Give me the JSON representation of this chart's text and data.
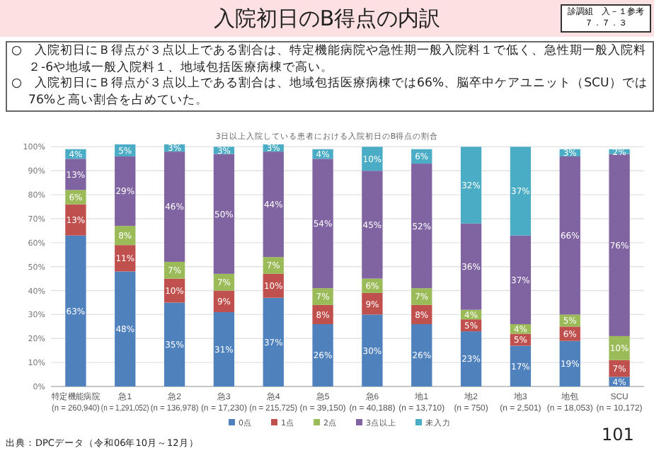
{
  "chart_data": {
    "type": "bar",
    "stacked": true,
    "title": "入院初日のB得点の内訳",
    "subtitle": "3日以上入院している患者における入院初日のB得点の割合",
    "annotations": [
      "○　入院初日にＢ得点が３点以上である割合は、特定機能病院や急性期一般入院料１で低く、急性期一般入院料２-6や地域一般入院料１、地域包括医療病棟で高い。",
      "○　入院初日にＢ得点が３点以上である割合は、地域包括医療病棟では66%、脳卒中ケアユニット（SCU）では76%と高い割合を占めていた。",
      "診調組　入－１参考",
      "７．７．３",
      "出典：DPCデータ（令和06年10月～12月）",
      "101"
    ],
    "categories": [
      "特定機能病院\n(n = 260,940)",
      "急1\n(n = 1,291,052)",
      "急2\n(n = 136,978)",
      "急3\n(n = 17,230)",
      "急4\n(n = 215,725)",
      "急5\n(n = 39,150)",
      "急6\n(n = 40,188)",
      "地1\n(n = 13,710)",
      "地2\n(n = 750)",
      "地3\n(n = 2,501)",
      "地包\n(n = 18,053)",
      "SCU\n(n = 10,172)"
    ],
    "series": [
      {
        "name": "0点",
        "color": "#4f81bd",
        "values": [
          63,
          48,
          35,
          31,
          37,
          26,
          30,
          26,
          23,
          17,
          19,
          4
        ],
        "value_labels": [
          "63%",
          "48%",
          "35%",
          "31%",
          "37%",
          "26%",
          "30%",
          "26%",
          "23%",
          "17%",
          "19%",
          "4%"
        ]
      },
      {
        "name": "1点",
        "color": "#c0504d",
        "values": [
          13,
          11,
          10,
          9,
          10,
          8,
          9,
          8,
          5,
          5,
          6,
          7
        ],
        "value_labels": [
          "13%",
          "11%",
          "10%",
          "9%",
          "10%",
          "8%",
          "9%",
          "8%",
          "5%",
          "5%",
          "6%",
          "7%"
        ]
      },
      {
        "name": "2点",
        "color": "#9bbb59",
        "values": [
          6,
          8,
          7,
          7,
          7,
          7,
          6,
          7,
          4,
          4,
          5,
          10
        ],
        "value_labels": [
          "6%",
          "8%",
          "7%",
          "7%",
          "7%",
          "7%",
          "6%",
          "7%",
          "4%",
          "4%",
          "5%",
          "10%"
        ]
      },
      {
        "name": "3点以上",
        "color": "#8064a2",
        "values": [
          13,
          29,
          46,
          50,
          44,
          54,
          45,
          52,
          36,
          37,
          66,
          76
        ],
        "value_labels": [
          "13%",
          "29%",
          "46%",
          "50%",
          "44%",
          "54%",
          "45%",
          "52%",
          "36%",
          "37%",
          "66%",
          "76%"
        ]
      },
      {
        "name": "未入力",
        "color": "#4bacc6",
        "values": [
          4,
          5,
          3,
          3,
          3,
          4,
          10,
          6,
          32,
          37,
          3,
          2
        ],
        "value_labels": [
          "4%",
          "5%",
          "3%",
          "3%",
          "3%",
          "4%",
          "10%",
          "6%",
          "32%",
          "37%",
          "3%",
          "2%"
        ]
      }
    ],
    "ylim": [
      0,
      101
    ],
    "yticks": [
      {
        "value": 0,
        "label": "0%"
      },
      {
        "value": 10,
        "label": "10%"
      },
      {
        "value": 20,
        "label": "20%"
      },
      {
        "value": 30,
        "label": "30%"
      },
      {
        "value": 40,
        "label": "40%"
      },
      {
        "value": 50,
        "label": "50%"
      },
      {
        "value": 60,
        "label": "60%"
      },
      {
        "value": 70,
        "label": "70%"
      },
      {
        "value": 80,
        "label": "80%"
      },
      {
        "value": 90,
        "label": "90%"
      },
      {
        "value": 100,
        "label": "100%"
      }
    ],
    "grid": "y",
    "legend": "bottom"
  }
}
